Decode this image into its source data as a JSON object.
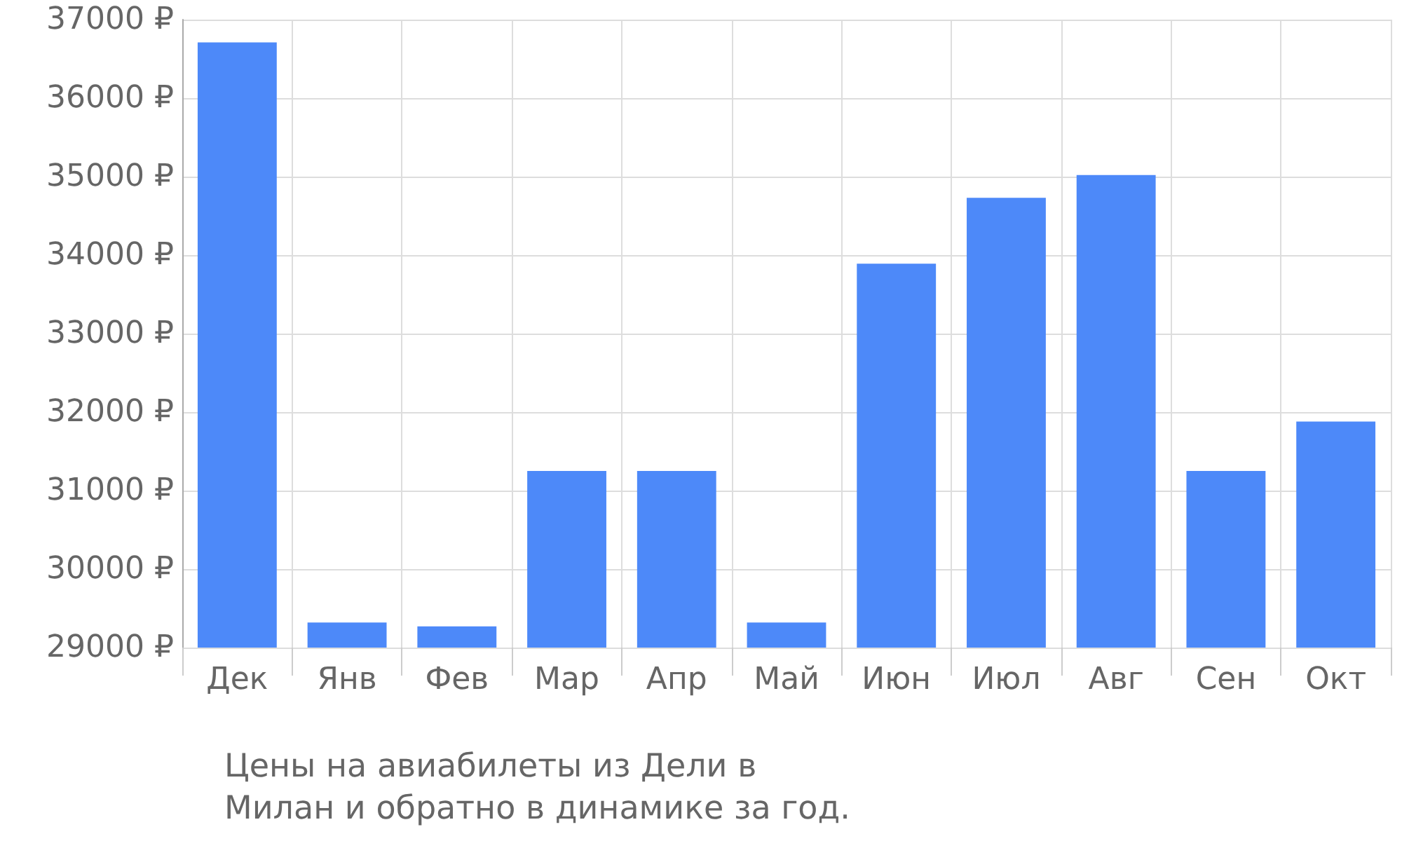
{
  "chart_data": {
    "type": "bar",
    "categories": [
      "Дек",
      "Янв",
      "Фев",
      "Мар",
      "Апр",
      "Май",
      "Июн",
      "Июл",
      "Авг",
      "Сен",
      "Окт"
    ],
    "values": [
      36710,
      29320,
      29270,
      31250,
      31250,
      29320,
      33890,
      34730,
      35020,
      31250,
      31880
    ],
    "color": "#4d89f9",
    "ylim": [
      29000,
      37000
    ],
    "yticks": [
      {
        "value": 29000,
        "label": "29000 ₽"
      },
      {
        "value": 30000,
        "label": "30000 ₽"
      },
      {
        "value": 31000,
        "label": "31000 ₽"
      },
      {
        "value": 32000,
        "label": "32000 ₽"
      },
      {
        "value": 33000,
        "label": "33000 ₽"
      },
      {
        "value": 34000,
        "label": "34000 ₽"
      },
      {
        "value": 35000,
        "label": "35000 ₽"
      },
      {
        "value": 36000,
        "label": "36000 ₽"
      },
      {
        "value": 37000,
        "label": "37000 ₽"
      }
    ],
    "grid": true,
    "annotations": [
      "Цены на авиабилеты из Дели в Милан и обратно в динамике за год."
    ]
  }
}
